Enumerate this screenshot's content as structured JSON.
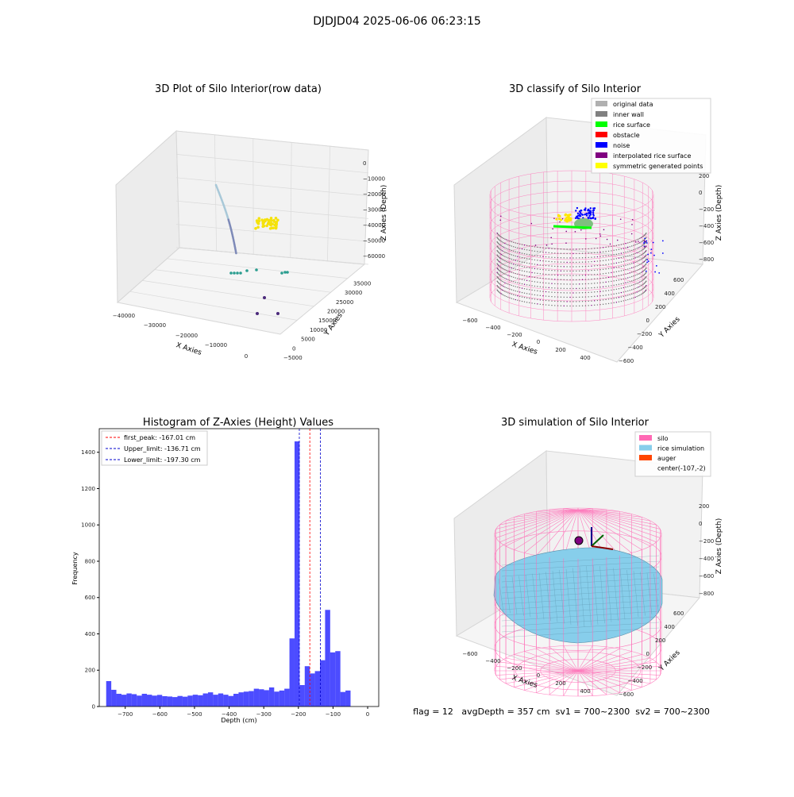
{
  "figure_title": "DJDJD04 2025-06-06 06:23:15",
  "colors": {
    "histogram": "#0000ff",
    "peak_line": "#ff0000",
    "limit_lines": "#0000cc",
    "silo": "#ff69b4",
    "rice": "#87ceeb",
    "auger": "#ff4500",
    "legend_original": "#b0b0b0",
    "legend_wall": "#808080",
    "legend_surface": "#00ff00",
    "legend_obstacle": "#ff0000",
    "legend_noise": "#0000ff",
    "legend_interp": "#800080",
    "legend_sym": "#ffff00"
  },
  "chart_data": [
    {
      "type": "scatter",
      "title": "3D Plot of Silo Interior(row data)",
      "xlabel": "X Axies",
      "ylabel": "Y Axies",
      "zlabel": "Z Axies (Depth)",
      "x_ticks": [
        "−40000",
        "−30000",
        "−20000",
        "−10000",
        "0"
      ],
      "y_ticks": [
        "−5000",
        "0",
        "5000",
        "10000",
        "15000",
        "20000",
        "25000",
        "30000",
        "35000"
      ],
      "z_ticks": [
        "0",
        "−10000",
        "−20000",
        "−30000",
        "−40000",
        "−50000",
        "−60000"
      ]
    },
    {
      "type": "scatter",
      "title": "3D classify of Silo Interior",
      "xlabel": "X Axies",
      "ylabel": "Y Axies",
      "zlabel": "Z Axies (Depth)",
      "x_ticks": [
        "−600",
        "−400",
        "−200",
        "0",
        "200",
        "400"
      ],
      "y_ticks": [
        "−600",
        "−400",
        "−200",
        "0",
        "200",
        "400",
        "600"
      ],
      "z_ticks": [
        "200",
        "0",
        "−200",
        "−400",
        "−600",
        "−800"
      ],
      "legend": [
        "original data",
        "inner wall",
        "rice surface",
        "obstacle",
        "noise",
        "interpolated rice surface",
        "symmetric generated points"
      ]
    },
    {
      "type": "bar",
      "title": "Histogram of Z-Axies (Height) Values",
      "xlabel": "Depth (cm)",
      "ylabel": "Frequency",
      "xlim": [
        -775,
        32
      ],
      "ylim": [
        0,
        1530
      ],
      "x_ticks": [
        -700,
        -600,
        -500,
        -400,
        -300,
        -200,
        -100,
        0
      ],
      "y_ticks": [
        0,
        200,
        400,
        600,
        800,
        1000,
        1200,
        1400
      ],
      "bin_start": -755,
      "bin_width": 14.7,
      "values": [
        140,
        92,
        70,
        65,
        72,
        68,
        60,
        70,
        65,
        60,
        64,
        57,
        55,
        52,
        58,
        54,
        60,
        65,
        62,
        72,
        78,
        65,
        72,
        65,
        58,
        70,
        78,
        82,
        85,
        98,
        95,
        90,
        105,
        82,
        88,
        98,
        375,
        1460,
        118,
        222,
        182,
        195,
        255,
        532,
        298,
        305,
        80,
        88
      ],
      "vlines": [
        {
          "label": "first_peak: -167.01 cm",
          "x": -167.01,
          "kind": "peak"
        },
        {
          "label": "Upper_limit: -136.71 cm",
          "x": -136.71,
          "kind": "limit"
        },
        {
          "label": "Lower_limit: -197.30 cm",
          "x": -197.3,
          "kind": "limit"
        }
      ]
    },
    {
      "type": "area",
      "title": "3D simulation of Silo Interior",
      "xlabel": "X Axies",
      "ylabel": "Y Axies",
      "zlabel": "Z Axies (Depth)",
      "x_ticks": [
        "−600",
        "−400",
        "−200",
        "0",
        "200",
        "400"
      ],
      "y_ticks": [
        "−600",
        "−400",
        "−200",
        "0",
        "200",
        "400",
        "600"
      ],
      "z_ticks": [
        "200",
        "0",
        "−200",
        "−400",
        "−600",
        "−800"
      ],
      "legend": [
        "silo",
        "rice simulation",
        "auger",
        "center(-107,-2)"
      ]
    }
  ],
  "status_line": "flag = 12   avgDepth = 357 cm  sv1 = 700~2300  sv2 = 700~2300"
}
